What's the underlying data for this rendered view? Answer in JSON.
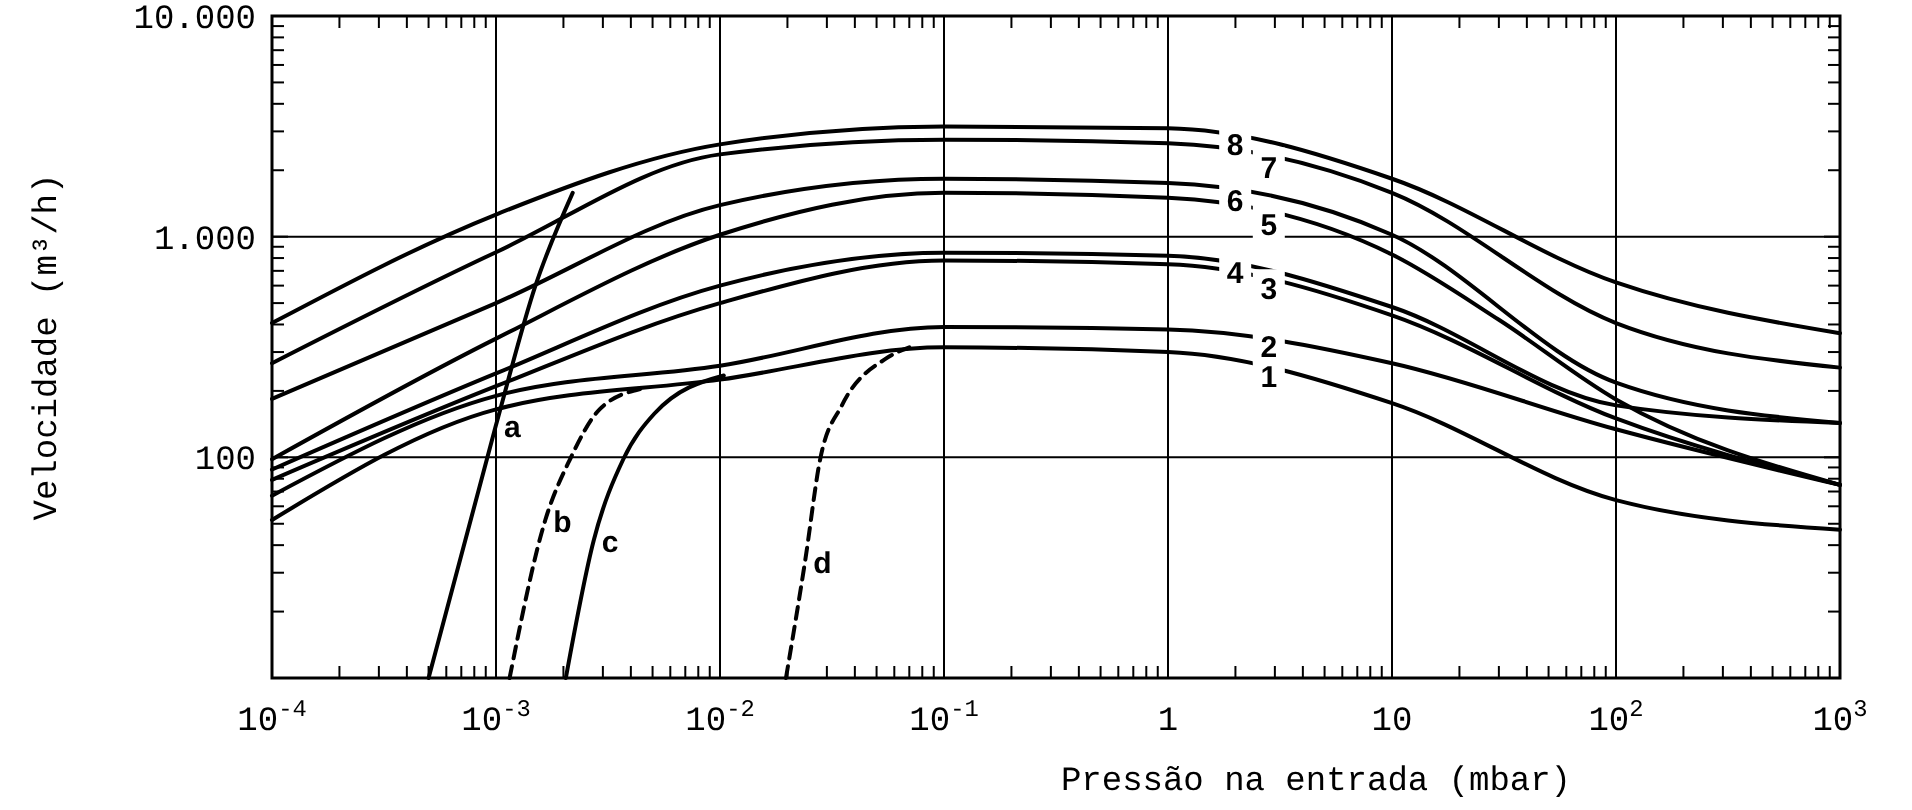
{
  "chart_data": {
    "type": "line",
    "xlabel": "Pressão na entrada (mbar)",
    "ylabel": "Velocidade (m³/h)",
    "log": "xy",
    "grid": true,
    "line_style": "solid",
    "xlim": [
      0.0001,
      1000
    ],
    "ylim": [
      10,
      10000
    ],
    "xticks": [
      {
        "value": 0.0001,
        "label": "10$^{-4}$"
      },
      {
        "value": 0.0002,
        "label": null
      },
      {
        "value": 0.0003,
        "label": null
      },
      {
        "value": 0.0004,
        "label": null
      },
      {
        "value": 0.0005,
        "label": null
      },
      {
        "value": 0.0006,
        "label": null
      },
      {
        "value": 0.0007,
        "label": null
      },
      {
        "value": 0.0008,
        "label": null
      },
      {
        "value": 0.0009,
        "label": null
      },
      {
        "value": 0.001,
        "label": "10$^{-3}$"
      },
      {
        "value": 0.002,
        "label": null
      },
      {
        "value": 0.003,
        "label": null
      },
      {
        "value": 0.004,
        "label": null
      },
      {
        "value": 0.005,
        "label": null
      },
      {
        "value": 0.006,
        "label": null
      },
      {
        "value": 0.007,
        "label": null
      },
      {
        "value": 0.008,
        "label": null
      },
      {
        "value": 0.009,
        "label": null
      },
      {
        "value": 0.01,
        "label": "10$^{-2}$"
      },
      {
        "value": 0.02,
        "label": null
      },
      {
        "value": 0.03,
        "label": null
      },
      {
        "value": 0.04,
        "label": null
      },
      {
        "value": 0.05,
        "label": null
      },
      {
        "value": 0.06,
        "label": null
      },
      {
        "value": 0.07,
        "label": null
      },
      {
        "value": 0.08,
        "label": null
      },
      {
        "value": 0.09,
        "label": null
      },
      {
        "value": 0.1,
        "label": "10$^{-1}$"
      },
      {
        "value": 0.2,
        "label": null
      },
      {
        "value": 0.3,
        "label": null
      },
      {
        "value": 0.4,
        "label": null
      },
      {
        "value": 0.5,
        "label": null
      },
      {
        "value": 0.6,
        "label": null
      },
      {
        "value": 0.7,
        "label": null
      },
      {
        "value": 0.8,
        "label": null
      },
      {
        "value": 0.9,
        "label": null
      },
      1,
      {
        "value": 2,
        "label": null
      },
      {
        "value": 3,
        "label": null
      },
      {
        "value": 4,
        "label": null
      },
      {
        "value": 5,
        "label": null
      },
      {
        "value": 6,
        "label": null
      },
      {
        "value": 7,
        "label": null
      },
      {
        "value": 8,
        "label": null
      },
      {
        "value": 9,
        "label": null
      },
      10,
      {
        "value": 20,
        "label": null
      },
      {
        "value": 30,
        "label": null
      },
      {
        "value": 40,
        "label": null
      },
      {
        "value": 50,
        "label": null
      },
      {
        "value": 60,
        "label": null
      },
      {
        "value": 70,
        "label": null
      },
      {
        "value": 80,
        "label": null
      },
      {
        "value": 90,
        "label": null
      },
      {
        "value": 100,
        "label": "10$^{2}$"
      },
      {
        "value": 200,
        "label": null
      },
      {
        "value": 300,
        "label": null
      },
      {
        "value": 400,
        "label": null
      },
      {
        "value": 500,
        "label": null
      },
      {
        "value": 600,
        "label": null
      },
      {
        "value": 700,
        "label": null
      },
      {
        "value": 800,
        "label": null
      },
      {
        "value": 900,
        "label": null
      },
      {
        "value": 1000,
        "label": "10$^{3}$"
      }
    ],
    "yticks": [
      {
        "value": 20,
        "label": null
      },
      {
        "value": 30,
        "label": null
      },
      {
        "value": 40,
        "label": null
      },
      {
        "value": 50,
        "label": null
      },
      {
        "value": 60,
        "label": null
      },
      {
        "value": 70,
        "label": null
      },
      {
        "value": 80,
        "label": null
      },
      {
        "value": 90,
        "label": null
      },
      100,
      {
        "value": 200,
        "label": null
      },
      {
        "value": 300,
        "label": null
      },
      {
        "value": 400,
        "label": null
      },
      {
        "value": 500,
        "label": null
      },
      {
        "value": 600,
        "label": null
      },
      {
        "value": 700,
        "label": null
      },
      {
        "value": 800,
        "label": null
      },
      {
        "value": 900,
        "label": null
      },
      {
        "value": 1000,
        "label": "1.000"
      },
      {
        "value": 2000,
        "label": null
      },
      {
        "value": 3000,
        "label": null
      },
      {
        "value": 4000,
        "label": null
      },
      {
        "value": 5000,
        "label": null
      },
      {
        "value": 6000,
        "label": null
      },
      {
        "value": 7000,
        "label": null
      },
      {
        "value": 8000,
        "label": null
      },
      {
        "value": 9000,
        "label": null
      },
      {
        "value": 10000,
        "label": "10.000"
      }
    ],
    "series": [
      {
        "name": "1",
        "color": "#000000",
        "x": [
          0.0001,
          0.001,
          0.01,
          0.1,
          1,
          10,
          100,
          1000
        ],
        "values": [
          52,
          165,
          225,
          315,
          300,
          176,
          64,
          47
        ]
      },
      {
        "name": "2",
        "color": "#000000",
        "x": [
          0.0001,
          0.001,
          0.01,
          0.1,
          1,
          10,
          100,
          1000
        ],
        "values": [
          67,
          190,
          260,
          390,
          380,
          267,
          134,
          75
        ]
      },
      {
        "name": "3",
        "color": "#000000",
        "x": [
          0.0001,
          0.001,
          0.01,
          0.1,
          1,
          10,
          100,
          1000
        ],
        "values": [
          79,
          210,
          500,
          780,
          750,
          440,
          150,
          75
        ]
      },
      {
        "name": "4",
        "color": "#000000",
        "x": [
          0.0001,
          0.001,
          0.01,
          0.1,
          1,
          10,
          100,
          1000
        ],
        "values": [
          88,
          240,
          600,
          845,
          820,
          480,
          172,
          143
        ]
      },
      {
        "name": "5",
        "color": "#000000",
        "x": [
          0.0001,
          0.001,
          0.01,
          0.1,
          1,
          10,
          30,
          100,
          1000
        ],
        "values": [
          98,
          345,
          1020,
          1580,
          1500,
          830,
          420,
          183,
          75
        ]
      },
      {
        "name": "6",
        "color": "#000000",
        "x": [
          0.0001,
          0.001,
          0.01,
          0.1,
          1,
          10,
          100,
          1000
        ],
        "values": [
          184,
          500,
          1390,
          1830,
          1750,
          1020,
          218,
          143
        ]
      },
      {
        "name": "7",
        "color": "#000000",
        "x": [
          0.0001,
          0.001,
          0.01,
          0.1,
          1,
          10,
          100,
          1000
        ],
        "values": [
          267,
          850,
          2360,
          2750,
          2650,
          1580,
          406,
          255
        ]
      },
      {
        "name": "8",
        "color": "#000000",
        "x": [
          0.0001,
          0.001,
          0.01,
          0.1,
          1,
          10,
          100,
          1000
        ],
        "values": [
          406,
          1260,
          2620,
          3160,
          3100,
          1830,
          620,
          365
        ]
      },
      {
        "name": "a",
        "color": "#000000",
        "x": [
          0.0005,
          0.001,
          0.0015,
          0.0022
        ],
        "values": [
          10,
          140,
          600,
          1580
        ]
      },
      {
        "name": "b",
        "color": "#000000",
        "line_style": "dashed",
        "x": [
          0.00115,
          0.00166,
          0.00214,
          0.0029,
          0.0044
        ],
        "values": [
          10,
          52,
          98,
          165,
          204
        ]
      },
      {
        "name": "c",
        "color": "#000000",
        "x": [
          0.00205,
          0.00273,
          0.0037,
          0.0051,
          0.0104
        ],
        "values": [
          10,
          42,
          98,
          158,
          235
        ]
      },
      {
        "name": "d",
        "color": "#000000",
        "line_style": "dashed",
        "x": [
          0.0197,
          0.024,
          0.028,
          0.035,
          0.055,
          0.07
        ],
        "values": [
          10,
          34,
          98,
          172,
          280,
          315
        ]
      }
    ]
  }
}
